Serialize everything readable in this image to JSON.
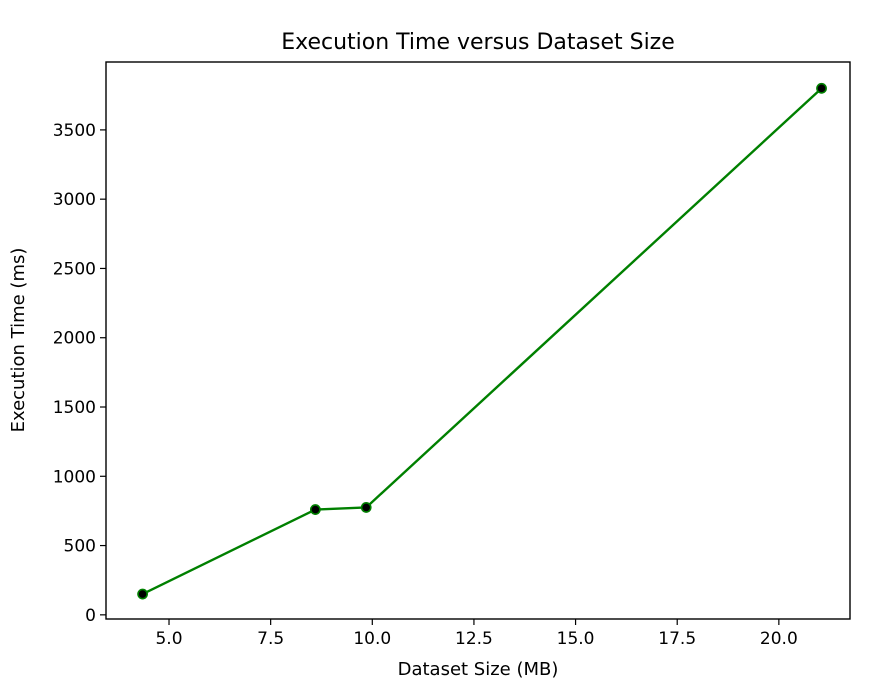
{
  "chart_data": {
    "type": "line",
    "title": "Execution Time versus Dataset Size",
    "xlabel": "Dataset Size (MB)",
    "ylabel": "Execution Time (ms)",
    "xlim": [
      3.45,
      21.75
    ],
    "ylim": [
      -30,
      3990
    ],
    "xticks": [
      5.0,
      7.5,
      10.0,
      12.5,
      15.0,
      17.5,
      20.0
    ],
    "xtick_labels": [
      "5.0",
      "7.5",
      "10.0",
      "12.5",
      "15.0",
      "17.5",
      "20.0"
    ],
    "yticks": [
      0,
      500,
      1000,
      1500,
      2000,
      2500,
      3000,
      3500
    ],
    "ytick_labels": [
      "0",
      "500",
      "1000",
      "1500",
      "2000",
      "2500",
      "3000",
      "3500"
    ],
    "grid": false,
    "series": [
      {
        "x": [
          4.35,
          8.6,
          9.85,
          21.05
        ],
        "y": [
          150,
          760,
          775,
          3800
        ],
        "line_color": "#008000",
        "marker_color": "#000000",
        "marker_edge_color": "#008000"
      }
    ]
  }
}
